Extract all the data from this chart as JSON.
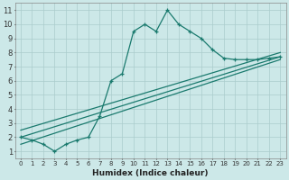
{
  "xlabel": "Humidex (Indice chaleur)",
  "bg_color": "#cce8e8",
  "line_color": "#1a7a6e",
  "grid_color": "#aacccc",
  "xlim": [
    -0.5,
    23.5
  ],
  "ylim": [
    0.5,
    11.5
  ],
  "yticks": [
    1,
    2,
    3,
    4,
    5,
    6,
    7,
    8,
    9,
    10,
    11
  ],
  "xticks": [
    0,
    1,
    2,
    3,
    4,
    5,
    6,
    7,
    8,
    9,
    10,
    11,
    12,
    13,
    14,
    15,
    16,
    17,
    18,
    19,
    20,
    21,
    22,
    23
  ],
  "series1_x": [
    0,
    1,
    2,
    3,
    4,
    5,
    6,
    7,
    8,
    9,
    10,
    11,
    12,
    13,
    14,
    15,
    16,
    17,
    18,
    19,
    20,
    21,
    22,
    23
  ],
  "series1_y": [
    2.0,
    1.8,
    1.5,
    1.0,
    1.5,
    1.8,
    2.0,
    3.5,
    6.0,
    6.5,
    9.5,
    10.0,
    9.5,
    11.0,
    10.0,
    9.5,
    9.0,
    8.2,
    7.6,
    7.5,
    7.5,
    7.5,
    7.6,
    7.7
  ],
  "line1_x": [
    0,
    23
  ],
  "line1_y": [
    1.5,
    7.5
  ],
  "line2_x": [
    0,
    23
  ],
  "line2_y": [
    2.0,
    7.7
  ],
  "line3_x": [
    0,
    23
  ],
  "line3_y": [
    2.5,
    8.0
  ]
}
